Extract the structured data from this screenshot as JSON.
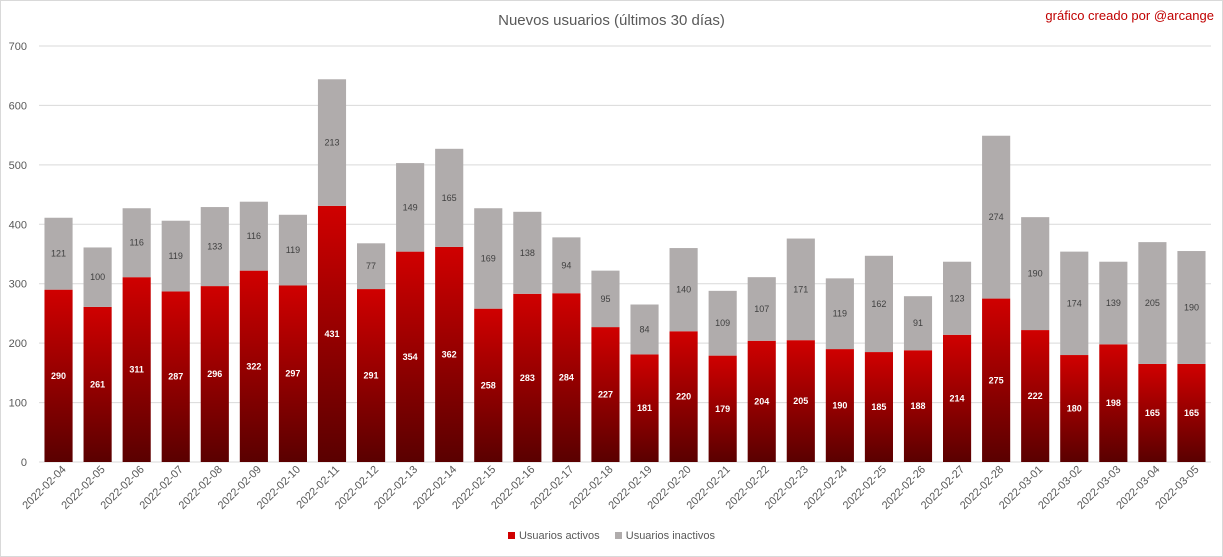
{
  "credit": "gráfico creado por @arcange",
  "colors": {
    "active_top": "#d00000",
    "active_bottom": "#5a0000",
    "inactive": "#b0acac",
    "grid": "#d9d9d9"
  },
  "chart_data": {
    "type": "bar",
    "stacked": true,
    "title": "Nuevos usuarios (últimos 30 días)",
    "xlabel": "",
    "ylabel": "",
    "ylim": [
      0,
      700
    ],
    "yticks": [
      0,
      100,
      200,
      300,
      400,
      500,
      600,
      700
    ],
    "grid": true,
    "legend_position": "bottom",
    "categories": [
      "2022-02-04",
      "2022-02-05",
      "2022-02-06",
      "2022-02-07",
      "2022-02-08",
      "2022-02-09",
      "2022-02-10",
      "2022-02-11",
      "2022-02-12",
      "2022-02-13",
      "2022-02-14",
      "2022-02-15",
      "2022-02-16",
      "2022-02-17",
      "2022-02-18",
      "2022-02-19",
      "2022-02-20",
      "2022-02-21",
      "2022-02-22",
      "2022-02-23",
      "2022-02-24",
      "2022-02-25",
      "2022-02-26",
      "2022-02-27",
      "2022-02-28",
      "2022-03-01",
      "2022-03-02",
      "2022-03-03",
      "2022-03-04",
      "2022-03-05"
    ],
    "series": [
      {
        "name": "Usuarios activos",
        "values": [
          290,
          261,
          311,
          287,
          296,
          322,
          297,
          431,
          291,
          354,
          362,
          258,
          283,
          284,
          227,
          181,
          220,
          179,
          204,
          205,
          190,
          185,
          188,
          214,
          275,
          222,
          180,
          198,
          165,
          165
        ]
      },
      {
        "name": "Usuarios inactivos",
        "values": [
          121,
          100,
          116,
          119,
          133,
          116,
          119,
          213,
          77,
          149,
          165,
          169,
          138,
          94,
          95,
          84,
          140,
          109,
          107,
          171,
          119,
          162,
          91,
          123,
          274,
          190,
          174,
          139,
          205,
          190
        ]
      }
    ]
  }
}
